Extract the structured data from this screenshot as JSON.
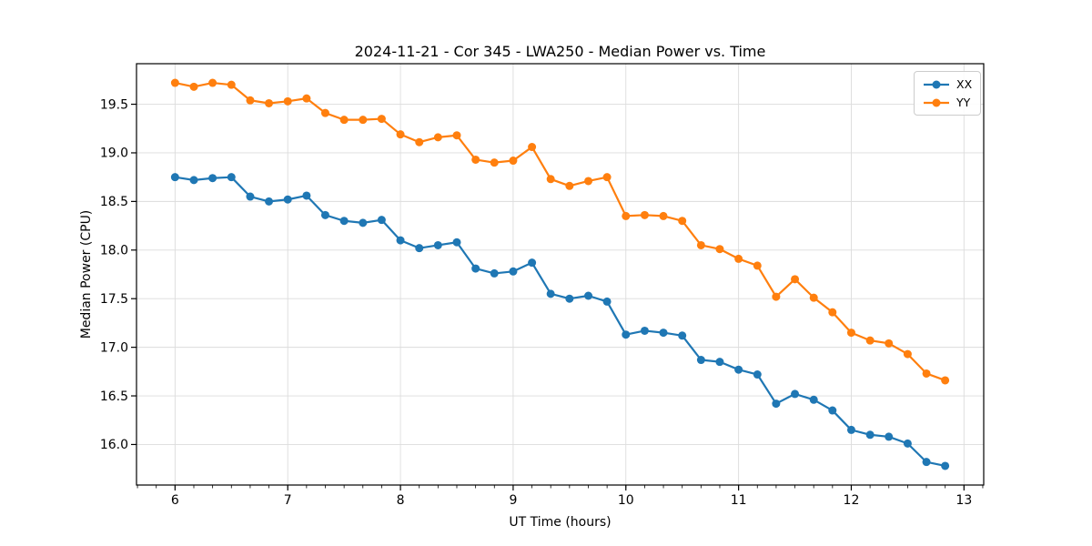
{
  "chart_data": {
    "type": "line",
    "title": "2024-11-21 - Cor 345 - LWA250 - Median Power vs. Time",
    "xlabel": "UT Time (hours)",
    "ylabel": "Median Power (CPU)",
    "grid": true,
    "legend_position": "upper right",
    "marker": "o",
    "xlim": [
      5.658,
      13.175
    ],
    "ylim": [
      15.583,
      19.917
    ],
    "xticks": [
      6,
      7,
      8,
      9,
      10,
      11,
      12,
      13
    ],
    "xtick_labels": [
      "6",
      "7",
      "8",
      "9",
      "10",
      "11",
      "12",
      "13"
    ],
    "x_minor_interval": 0.1666667,
    "yticks": [
      16.0,
      16.5,
      17.0,
      17.5,
      18.0,
      18.5,
      19.0,
      19.5
    ],
    "ytick_labels": [
      "16.0",
      "16.5",
      "17.0",
      "17.5",
      "18.0",
      "18.5",
      "19.0",
      "19.5"
    ],
    "x": [
      6.0,
      6.167,
      6.333,
      6.5,
      6.667,
      6.833,
      7.0,
      7.167,
      7.333,
      7.5,
      7.667,
      7.833,
      8.0,
      8.167,
      8.333,
      8.5,
      8.667,
      8.833,
      9.0,
      9.167,
      9.333,
      9.5,
      9.667,
      9.833,
      10.0,
      10.167,
      10.333,
      10.5,
      10.667,
      10.833,
      11.0,
      11.167,
      11.333,
      11.5,
      11.667,
      11.833,
      12.0,
      12.167,
      12.333,
      12.5,
      12.667,
      12.833
    ],
    "series": [
      {
        "name": "XX",
        "color": "#1f77b4",
        "values": [
          18.75,
          18.72,
          18.74,
          18.75,
          18.55,
          18.5,
          18.52,
          18.56,
          18.36,
          18.3,
          18.28,
          18.31,
          18.1,
          18.02,
          18.05,
          18.08,
          17.81,
          17.76,
          17.78,
          17.87,
          17.55,
          17.5,
          17.53,
          17.47,
          17.13,
          17.17,
          17.15,
          17.12,
          16.87,
          16.85,
          16.77,
          16.72,
          16.42,
          16.52,
          16.46,
          16.35,
          16.15,
          16.1,
          16.08,
          16.01,
          15.82,
          15.78
        ]
      },
      {
        "name": "YY",
        "color": "#ff7f0e",
        "values": [
          19.72,
          19.68,
          19.72,
          19.7,
          19.54,
          19.51,
          19.53,
          19.56,
          19.41,
          19.34,
          19.34,
          19.35,
          19.19,
          19.11,
          19.16,
          19.18,
          18.93,
          18.9,
          18.92,
          19.06,
          18.73,
          18.66,
          18.71,
          18.75,
          18.35,
          18.36,
          18.35,
          18.3,
          18.05,
          18.01,
          17.91,
          17.84,
          17.52,
          17.7,
          17.51,
          17.36,
          17.15,
          17.07,
          17.04,
          16.93,
          16.73,
          16.66
        ]
      }
    ],
    "style": {
      "grid_color": "#dcdcdc",
      "spine_color": "#000000",
      "background": "#ffffff",
      "line_width": 2.2,
      "marker_radius": 4.5
    }
  }
}
